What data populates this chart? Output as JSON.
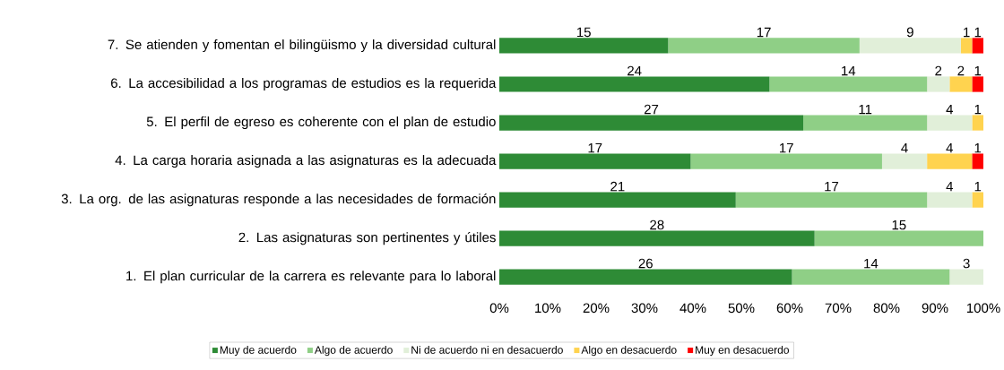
{
  "chart_data": {
    "type": "bar",
    "orientation": "horizontal",
    "stacked": true,
    "categories": [
      "7. Se atienden y fomentan el bilingüismo y la diversidad cultural",
      "6. La accesibilidad a los programas de estudios es la requerida",
      "5. El perfil de egreso es coherente con el plan de estudio",
      "4. La carga horaria asignada a las asignaturas es la adecuada",
      "3. La org. de las asignaturas responde a las necesidades de formación",
      "2. Las asignaturas son pertinentes y útiles",
      "1. El plan curricular de la carrera es relevante para lo laboral"
    ],
    "series": [
      {
        "name": "Muy de acuerdo",
        "color": "#2e8b36",
        "values": [
          34.88,
          55.81,
          62.79,
          39.53,
          48.84,
          65.12,
          60.46
        ]
      },
      {
        "name": "Algo de acuerdo",
        "color": "#8fcf86",
        "values": [
          39.53,
          32.56,
          25.58,
          39.53,
          39.53,
          34.88,
          32.56
        ]
      },
      {
        "name": "Ni de acuerdo ni en desacuerdo",
        "color": "#e1efd9",
        "values": [
          20.93,
          4.65,
          9.3,
          9.3,
          9.3,
          0,
          6.98
        ]
      },
      {
        "name": "Algo en desacuerdo",
        "color": "#ffd34f",
        "values": [
          2.33,
          4.65,
          2.33,
          9.3,
          2.33,
          0,
          0
        ]
      },
      {
        "name": "Muy en desacuerdo",
        "color": "#ff0000",
        "values": [
          2.33,
          2.33,
          0,
          2.33,
          0,
          0,
          0
        ]
      }
    ],
    "annotations": [
      "15",
      "17",
      "9",
      "1",
      "1",
      "24",
      "14",
      "2",
      "2",
      "1",
      "27",
      "11",
      "4",
      "1",
      "17",
      "17",
      "4",
      "4",
      "1",
      "21",
      "17",
      "4",
      "1",
      "28",
      "15",
      "26",
      "14",
      "3"
    ],
    "xlim": [
      0,
      100
    ],
    "xticks": [
      {
        "value": 0,
        "label": "0%"
      },
      {
        "value": 10,
        "label": "10%"
      },
      {
        "value": 20,
        "label": "20%"
      },
      {
        "value": 30,
        "label": "30%"
      },
      {
        "value": 40,
        "label": "40%"
      },
      {
        "value": 50,
        "label": "50%"
      },
      {
        "value": 60,
        "label": "60%"
      },
      {
        "value": 70,
        "label": "70%"
      },
      {
        "value": 80,
        "label": "80%"
      },
      {
        "value": 90,
        "label": "90%"
      },
      {
        "value": 100,
        "label": "100%"
      }
    ],
    "legend": "bottom"
  }
}
